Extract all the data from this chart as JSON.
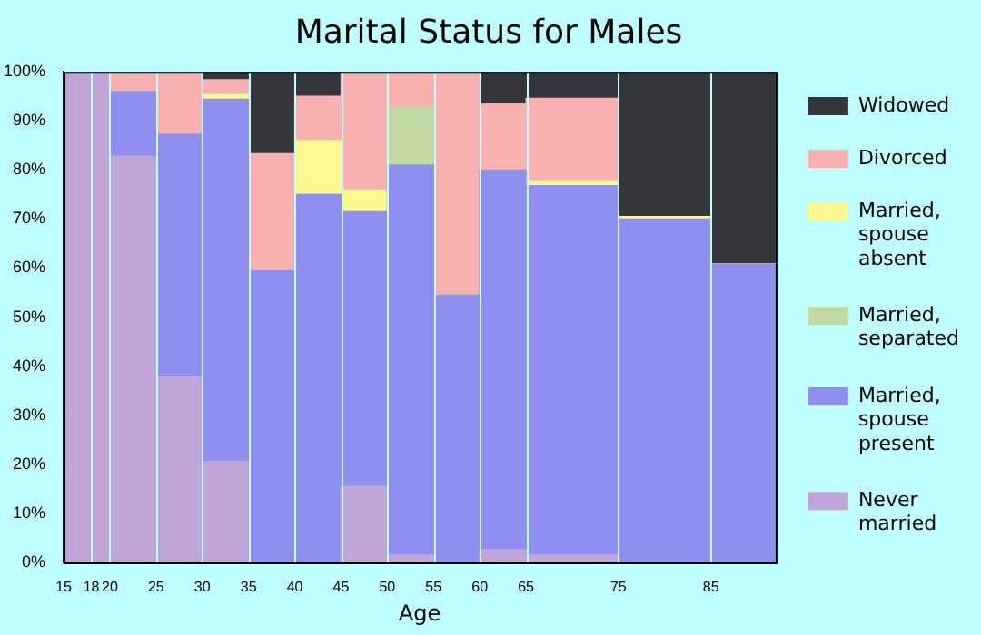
{
  "chart_data": {
    "type": "bar",
    "stacked": true,
    "title": "Marital Status for Males",
    "xlabel": "Age",
    "x": [
      16.5,
      19,
      22.5,
      27.5,
      32.5,
      37.5,
      42.5,
      47.5,
      52.5,
      57.5,
      62.5,
      70,
      80,
      88.5
    ],
    "xlim": [
      15,
      92
    ],
    "xticks": [
      15,
      18,
      20,
      25,
      30,
      35,
      40,
      45,
      50,
      55,
      60,
      65,
      75,
      85
    ],
    "ylim": [
      0,
      100
    ],
    "yticks": [
      {
        "value": 0,
        "label": "0%"
      },
      {
        "value": 10,
        "label": "10%"
      },
      {
        "value": 20,
        "label": "20%"
      },
      {
        "value": 30,
        "label": "30%"
      },
      {
        "value": 40,
        "label": "40%"
      },
      {
        "value": 50,
        "label": "50%"
      },
      {
        "value": 60,
        "label": "60%"
      },
      {
        "value": 70,
        "label": "70%"
      },
      {
        "value": 80,
        "label": "80%"
      },
      {
        "value": 90,
        "label": "90%"
      },
      {
        "value": 100,
        "label": "100%"
      }
    ],
    "grid": "x",
    "legend": "right",
    "series": [
      {
        "name": "Never married",
        "color": "#c0a6d8",
        "values": [
          100,
          100,
          82.8,
          37.8,
          20.6,
          0,
          0,
          15.5,
          1.5,
          0,
          2.6,
          1.5,
          0,
          0
        ]
      },
      {
        "name": "Married, spouse present",
        "color": "#8f8ff0",
        "values": [
          0,
          0,
          13.2,
          49.5,
          73.8,
          59.4,
          75,
          56,
          79.5,
          54.5,
          77.4,
          75.3,
          70,
          60.8
        ]
      },
      {
        "name": "Married, separated",
        "color": "#c2d9a3",
        "values": [
          0,
          0,
          0,
          0,
          0,
          0,
          0,
          0,
          11.7,
          0,
          0,
          0,
          0,
          0
        ]
      },
      {
        "name": "Married, spouse absent",
        "color": "#fff98f",
        "values": [
          0,
          0,
          0,
          0,
          1,
          0,
          11,
          4.4,
          0,
          0,
          0,
          1,
          0.5,
          0
        ]
      },
      {
        "name": "Divorced",
        "color": "#f8b0b0",
        "values": [
          0,
          0,
          3.9,
          12.7,
          3,
          23.9,
          9,
          24.1,
          7.3,
          45.5,
          13.5,
          16.8,
          0,
          0
        ]
      },
      {
        "name": "Widowed",
        "color": "#35363b",
        "values": [
          0,
          0,
          0,
          0,
          1.6,
          16.7,
          4.9,
          0,
          0,
          0,
          6.5,
          5.4,
          29.5,
          39.2
        ]
      }
    ]
  }
}
